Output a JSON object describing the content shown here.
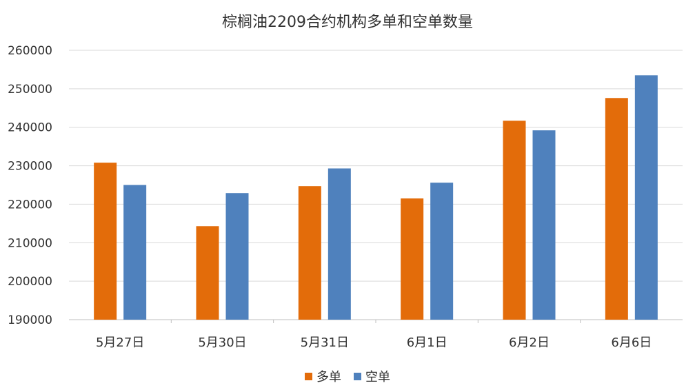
{
  "chart_data": {
    "type": "bar",
    "title": "棕榈油2209合约机构多单和空单数量",
    "categories": [
      "5月27日",
      "5月30日",
      "5月31日",
      "6月1日",
      "6月2日",
      "6月6日"
    ],
    "series": [
      {
        "name": "多单",
        "color": "#E36C0A",
        "values": [
          230800,
          214300,
          224700,
          221500,
          241700,
          247600
        ]
      },
      {
        "name": "空单",
        "color": "#4F81BD",
        "values": [
          225000,
          222900,
          229300,
          225600,
          239200,
          253500
        ]
      }
    ],
    "ylim": [
      190000,
      260000
    ],
    "yticks": [
      190000,
      200000,
      210000,
      220000,
      230000,
      240000,
      250000,
      260000
    ],
    "grid": true,
    "legend_position": "bottom"
  }
}
